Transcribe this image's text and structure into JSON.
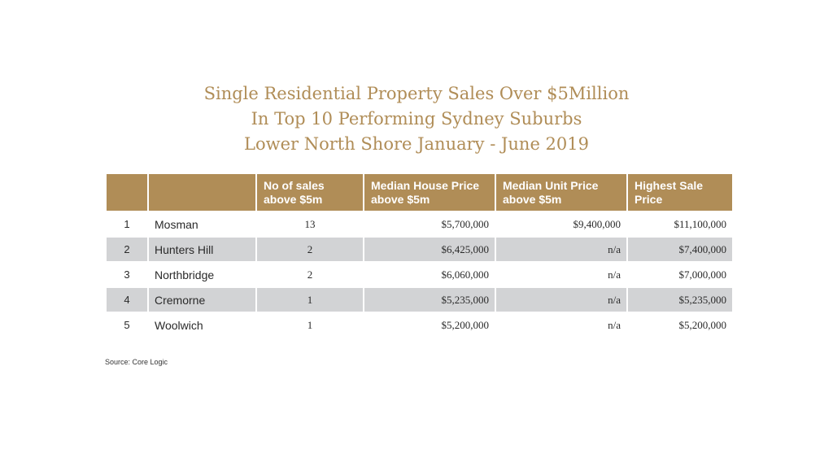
{
  "title": {
    "line1": "Single Residential Property Sales Over $5Million",
    "line2": "In Top 10 Performing Sydney Suburbs",
    "line3": "Lower North Shore January - June 2019"
  },
  "table": {
    "headers": [
      "",
      "",
      "No of sales above $5m",
      "Median House Price above $5m",
      "Median Unit Price above $5m",
      "Highest Sale Price"
    ],
    "rows": [
      {
        "rank": "1",
        "suburb": "Mosman",
        "sales": "13",
        "median_house": "$5,700,000",
        "median_unit": "$9,400,000",
        "highest": "$11,100,000"
      },
      {
        "rank": "2",
        "suburb": "Hunters Hill",
        "sales": "2",
        "median_house": "$6,425,000",
        "median_unit": "n/a",
        "highest": "$7,400,000"
      },
      {
        "rank": "3",
        "suburb": "Northbridge",
        "sales": "2",
        "median_house": "$6,060,000",
        "median_unit": "n/a",
        "highest": "$7,000,000"
      },
      {
        "rank": "4",
        "suburb": "Cremorne",
        "sales": "1",
        "median_house": "$5,235,000",
        "median_unit": "n/a",
        "highest": "$5,235,000"
      },
      {
        "rank": "5",
        "suburb": "Woolwich",
        "sales": "1",
        "median_house": "$5,200,000",
        "median_unit": "n/a",
        "highest": "$5,200,000"
      }
    ]
  },
  "source": "Source: Core Logic",
  "colors": {
    "accent": "#b08d57",
    "row_shade": "#d2d3d5"
  }
}
